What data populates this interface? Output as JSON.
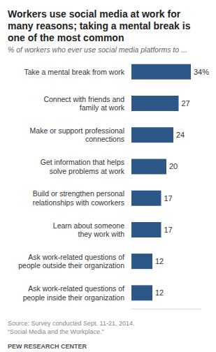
{
  "chart_data": {
    "type": "bar",
    "orientation": "horizontal",
    "title": "Workers use social media at work for\nmany reasons; taking a mental break is\none of the most common",
    "subtitle": "% of workers who ever use social media platforms to ...",
    "categories": [
      "Take a mental break from work",
      "Connect with friends and\nfamily at work",
      "Make or support professional\nconnections",
      "Get information that helps\nsolve problems at work",
      "Build or strengthen personal\nrelationships with coworkers",
      "Learn about someone\nthey work with",
      "Ask work-related questions of\npeople outside their organization",
      "Ask work-related questions of\npeople inside their organization"
    ],
    "values": [
      34,
      27,
      24,
      20,
      17,
      17,
      12,
      12
    ],
    "value_labels": [
      "34%",
      "27",
      "24",
      "20",
      "17",
      "17",
      "12",
      "12"
    ],
    "data_labels": true,
    "color": "#2d5786",
    "xlim": [
      0,
      40
    ],
    "xticks": [
      0,
      40
    ],
    "grid": false,
    "tick_labels": "y",
    "source": "Source: Survey conducted Sept. 11-21, 2014.\n“Social Media and the Workplace.”",
    "credit": "PEW RESEARCH CENTER"
  }
}
